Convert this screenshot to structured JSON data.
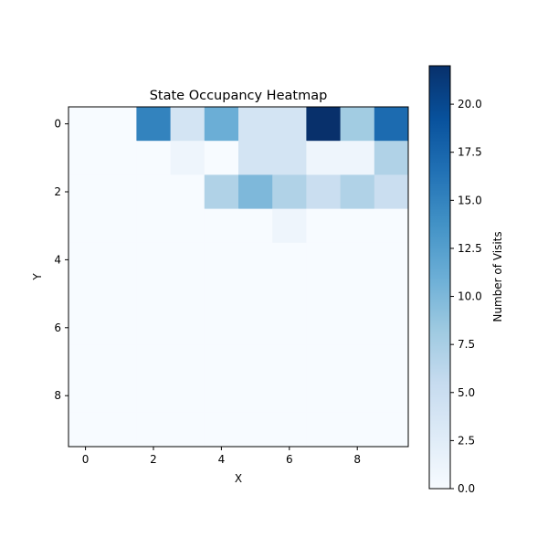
{
  "chart_data": {
    "type": "heatmap",
    "title": "State Occupancy Heatmap",
    "xlabel": "X",
    "ylabel": "Y",
    "x_ticks": [
      0,
      2,
      4,
      6,
      8
    ],
    "y_ticks": [
      0,
      2,
      4,
      6,
      8
    ],
    "x_range": [
      -0.5,
      9.5
    ],
    "y_range": [
      9.5,
      -0.5
    ],
    "colormap": "Blues",
    "colorbar": {
      "label": "Number of Visits",
      "min": 0,
      "max": 22,
      "ticks": [
        "0.0",
        "2.5",
        "5.0",
        "7.5",
        "10.0",
        "12.5",
        "15.0",
        "17.5",
        "20.0"
      ]
    },
    "values": [
      [
        0,
        0,
        15,
        4,
        11,
        4,
        4,
        22,
        8,
        17
      ],
      [
        0,
        0,
        0,
        1,
        0,
        4,
        4,
        1,
        1,
        7
      ],
      [
        0,
        0,
        0,
        0,
        7,
        10,
        7,
        5,
        7,
        5
      ],
      [
        0,
        0,
        0,
        0,
        0,
        0,
        1,
        0,
        0,
        0
      ],
      [
        0,
        0,
        0,
        0,
        0,
        0,
        0,
        0,
        0,
        0
      ],
      [
        0,
        0,
        0,
        0,
        0,
        0,
        0,
        0,
        0,
        0
      ],
      [
        0,
        0,
        0,
        0,
        0,
        0,
        0,
        0,
        0,
        0
      ],
      [
        0,
        0,
        0,
        0,
        0,
        0,
        0,
        0,
        0,
        0
      ],
      [
        0,
        0,
        0,
        0,
        0,
        0,
        0,
        0,
        0,
        0
      ],
      [
        0,
        0,
        0,
        0,
        0,
        0,
        0,
        0,
        0,
        0
      ]
    ]
  }
}
